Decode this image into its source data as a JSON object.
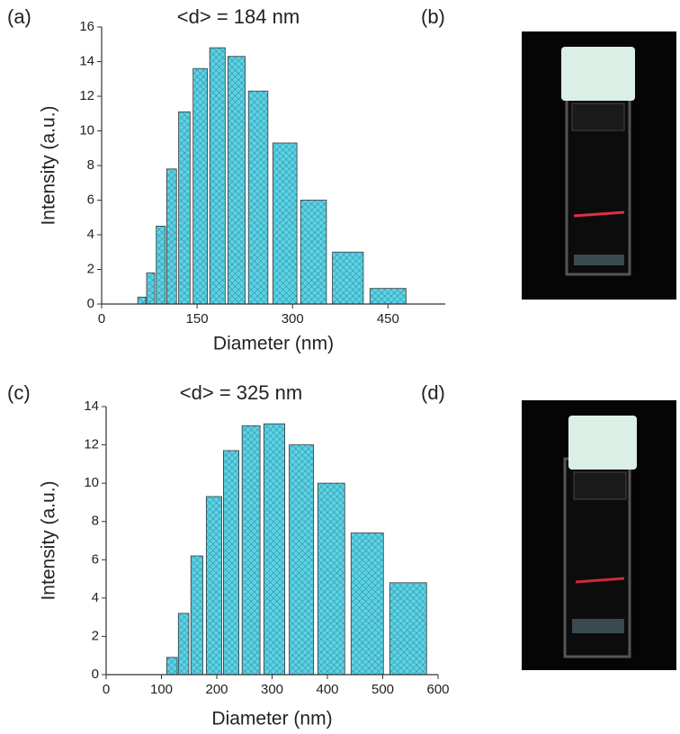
{
  "panel_labels": [
    "(a)",
    "(b)",
    "(c)",
    "(d)"
  ],
  "chart_data": [
    {
      "type": "bar",
      "title": "<d> = 184 nm",
      "x_label": "Diameter (nm)",
      "y_label": "Intensity (a.u.)",
      "x": [
        63,
        77,
        93,
        110,
        130,
        155,
        182,
        212,
        246,
        288,
        333,
        387,
        450
      ],
      "values": [
        0.4,
        1.8,
        4.5,
        7.8,
        11.1,
        13.6,
        14.8,
        14.3,
        12.3,
        9.3,
        6.0,
        3.0,
        0.9
      ],
      "color": "#5ad3e6",
      "xlim": [
        0,
        540
      ],
      "xticks": [
        0,
        150,
        300,
        450
      ],
      "ylim": [
        0,
        16
      ],
      "yticks": [
        0,
        2,
        4,
        6,
        8,
        10,
        12,
        14,
        16
      ]
    },
    {
      "type": "bar",
      "title": "<d> = 325 nm",
      "x_label": "Diameter (nm)",
      "y_label": "Intensity (a.u.)",
      "x": [
        119,
        140,
        164,
        195,
        226,
        262,
        304,
        353,
        407,
        472,
        546
      ],
      "values": [
        0.9,
        3.2,
        6.2,
        9.3,
        11.7,
        13.0,
        13.1,
        12.0,
        10.0,
        7.4,
        4.8
      ],
      "color": "#5ad3e6",
      "xlim": [
        0,
        600
      ],
      "xticks": [
        0,
        100,
        200,
        300,
        400,
        500,
        600
      ],
      "ylim": [
        0,
        14
      ],
      "yticks": [
        0,
        2,
        4,
        6,
        8,
        10,
        12,
        14
      ]
    }
  ]
}
